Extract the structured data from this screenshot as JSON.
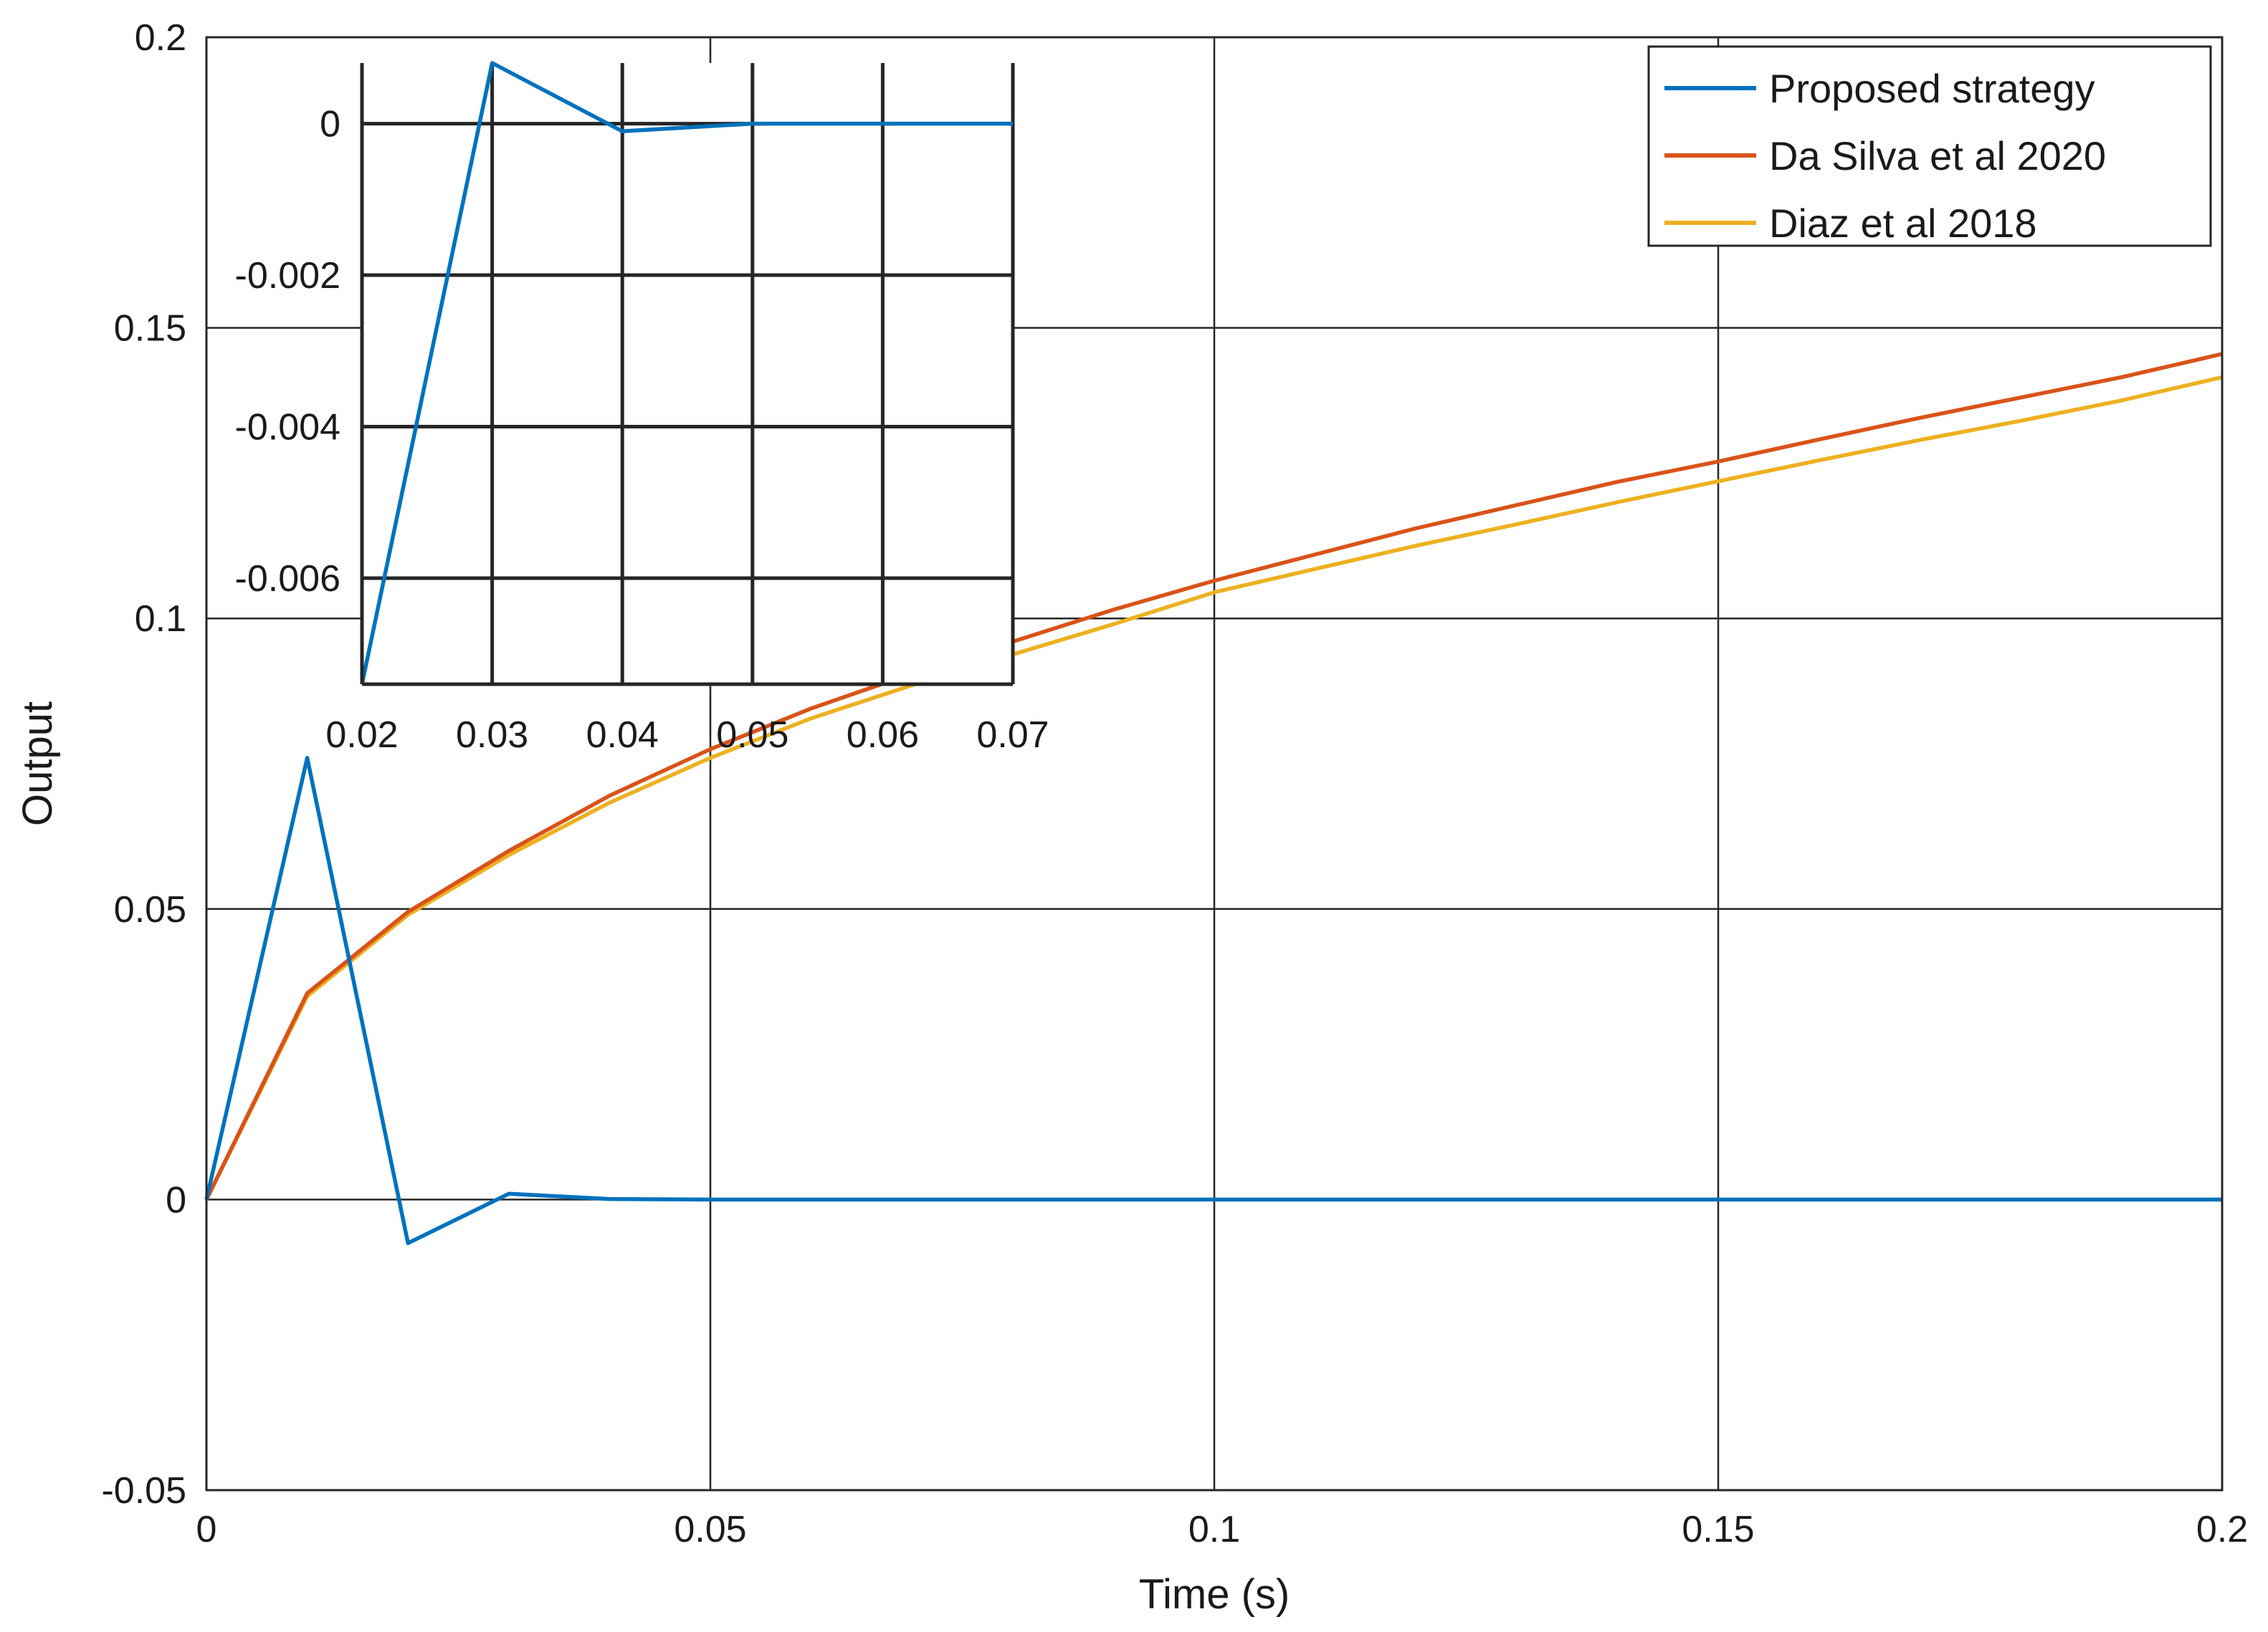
{
  "chart_data": [
    {
      "id": "main",
      "type": "line",
      "title": "",
      "xlabel": "Time (s)",
      "ylabel": "Output",
      "xlim": [
        0,
        0.2
      ],
      "ylim": [
        -0.05,
        0.2
      ],
      "xticks": [
        0,
        0.05,
        0.1,
        0.15,
        0.2
      ],
      "yticks": [
        -0.05,
        0,
        0.05,
        0.1,
        0.15,
        0.2
      ],
      "xtick_labels": [
        "0",
        "0.05",
        "0.1",
        "0.15",
        "0.2"
      ],
      "ytick_labels": [
        "-0.05",
        "0",
        "0.05",
        "0.1",
        "0.15",
        "0.2"
      ],
      "grid": true,
      "legend_position": "top-right",
      "series": [
        {
          "name": "Proposed strategy",
          "color": "#0072BD",
          "x": [
            0,
            0.01,
            0.02,
            0.03,
            0.04,
            0.05,
            0.06,
            0.07,
            0.08,
            0.09,
            0.1,
            0.11,
            0.12,
            0.13,
            0.14,
            0.15,
            0.16,
            0.17,
            0.18,
            0.19,
            0.2
          ],
          "y": [
            0,
            0.076,
            -0.0075,
            0.001,
            0.0001,
            0,
            0,
            0,
            0,
            0,
            0,
            0,
            0,
            0,
            0,
            0,
            0,
            0,
            0,
            0,
            0
          ]
        },
        {
          "name": "Da Silva et al 2020",
          "color": "#D95319",
          "x": [
            0,
            0.01,
            0.02,
            0.03,
            0.04,
            0.05,
            0.06,
            0.07,
            0.08,
            0.09,
            0.1,
            0.11,
            0.12,
            0.13,
            0.14,
            0.15,
            0.16,
            0.17,
            0.18,
            0.19,
            0.2
          ],
          "y": [
            0,
            0.0355,
            0.0495,
            0.06,
            0.0695,
            0.0775,
            0.0845,
            0.0905,
            0.096,
            0.1015,
            0.1065,
            0.111,
            0.1155,
            0.1195,
            0.1235,
            0.127,
            0.1308,
            0.1345,
            0.138,
            0.1415,
            0.1455
          ]
        },
        {
          "name": "Diaz et al 2018",
          "color": "#EDB120",
          "x": [
            0,
            0.01,
            0.02,
            0.03,
            0.04,
            0.05,
            0.06,
            0.07,
            0.08,
            0.09,
            0.1,
            0.11,
            0.12,
            0.13,
            0.14,
            0.15,
            0.16,
            0.17,
            0.18,
            0.19,
            0.2
          ],
          "y": [
            0,
            0.035,
            0.049,
            0.0593,
            0.0683,
            0.076,
            0.0828,
            0.0885,
            0.0938,
            0.099,
            0.1045,
            0.1085,
            0.1125,
            0.1162,
            0.12,
            0.1236,
            0.1272,
            0.1307,
            0.134,
            0.1375,
            0.1415
          ]
        }
      ]
    },
    {
      "id": "inset",
      "type": "line",
      "xlim": [
        0.02,
        0.07
      ],
      "ylim": [
        -0.0074,
        0.0008
      ],
      "xticks": [
        0.02,
        0.03,
        0.04,
        0.05,
        0.06,
        0.07
      ],
      "yticks": [
        0,
        -0.002,
        -0.004,
        -0.006
      ],
      "xtick_labels": [
        "0.02",
        "0.03",
        "0.04",
        "0.05",
        "0.06",
        "0.07"
      ],
      "ytick_labels": [
        "0",
        "-0.002",
        "-0.004",
        "-0.006"
      ],
      "grid": true,
      "series": [
        {
          "name": "Proposed strategy",
          "color": "#0072BD",
          "x": [
            0.02,
            0.03,
            0.04,
            0.05,
            0.06,
            0.07
          ],
          "y": [
            -0.0074,
            0.0008,
            -0.0001,
            0.0,
            0.0,
            0.0
          ]
        }
      ]
    }
  ]
}
